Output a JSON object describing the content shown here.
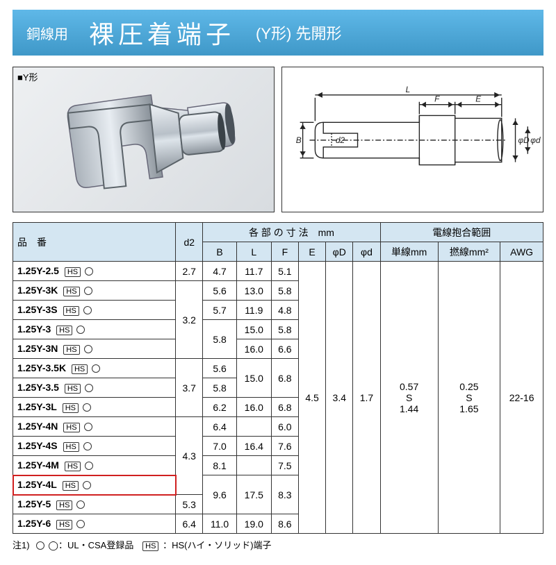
{
  "header": {
    "sub": "銅線用",
    "main": "裸圧着端子",
    "tail": "(Y形) 先開形"
  },
  "diagram_tag": "■Y形",
  "table": {
    "header_top": {
      "part": "品　番",
      "dims": "各 部 の 寸 法　mm",
      "wire": "電線抱合範囲"
    },
    "header_dims": [
      "d2",
      "B",
      "L",
      "F",
      "E",
      "φD",
      "φd"
    ],
    "header_wire": [
      "単線mm",
      "撚線mm²",
      "AWG"
    ],
    "rows": [
      {
        "part": "1.25Y-2.5",
        "hs": "HS",
        "d2": "2.7",
        "B": "4.7",
        "L": "11.7",
        "F": "5.1"
      },
      {
        "part": "1.25Y-3K",
        "hs": "HS",
        "d2": "",
        "B": "5.6",
        "L": "13.0",
        "F": "5.8"
      },
      {
        "part": "1.25Y-3S",
        "hs": "HS",
        "d2": "",
        "B": "5.7",
        "L": "11.9",
        "F": "4.8"
      },
      {
        "part": "1.25Y-3",
        "hs": "HS",
        "d2": "",
        "B": "5.8",
        "L": "15.0",
        "F": "5.8"
      },
      {
        "part": "1.25Y-3N",
        "hs": "HS",
        "d2": "",
        "B": "",
        "L": "16.0",
        "F": "6.6"
      },
      {
        "part": "1.25Y-3.5K",
        "hs": "HS",
        "d2": "",
        "B": "5.6",
        "L": "15.0",
        "F": "6.8"
      },
      {
        "part": "1.25Y-3.5",
        "hs": "HS",
        "d2": "",
        "B": "5.8",
        "L": "",
        "F": ""
      },
      {
        "part": "1.25Y-3L",
        "hs": "HS",
        "d2": "",
        "B": "6.2",
        "L": "16.0",
        "F": "6.8"
      },
      {
        "part": "1.25Y-4N",
        "hs": "HS",
        "d2": "",
        "B": "6.4",
        "L": "",
        "F": "6.0"
      },
      {
        "part": "1.25Y-4S",
        "hs": "HS",
        "d2": "",
        "B": "7.0",
        "L": "16.4",
        "F": "7.6"
      },
      {
        "part": "1.25Y-4M",
        "hs": "HS",
        "d2": "",
        "B": "8.1",
        "L": "",
        "F": "7.5"
      },
      {
        "part": "1.25Y-4L",
        "hs": "HS",
        "d2": "",
        "B": "9.6",
        "L": "17.5",
        "F": "8.3",
        "hl": true
      },
      {
        "part": "1.25Y-5",
        "hs": "HS",
        "d2": "5.3",
        "B": "",
        "L": "",
        "F": ""
      },
      {
        "part": "1.25Y-6",
        "hs": "HS",
        "d2": "6.4",
        "B": "11.0",
        "L": "19.0",
        "F": "8.6"
      }
    ],
    "d2_merge": [
      {
        "start": 1,
        "span": 4,
        "val": "3.2"
      },
      {
        "start": 5,
        "span": 3,
        "val": "3.7"
      },
      {
        "start": 8,
        "span": 4,
        "val": "4.3"
      }
    ],
    "B_merge": [
      {
        "start": 3,
        "span": 2,
        "val": "5.8"
      },
      {
        "start": 11,
        "span": 2,
        "val": "9.6"
      }
    ],
    "L_merge": [
      {
        "start": 5,
        "span": 2,
        "val": "15.0"
      },
      {
        "start": 11,
        "span": 2,
        "val": "17.5"
      }
    ],
    "F_merge": [
      {
        "start": 5,
        "span": 2,
        "val": "6.8"
      },
      {
        "start": 11,
        "span": 2,
        "val": "8.3"
      }
    ],
    "shared": {
      "E": "4.5",
      "phiD": "3.4",
      "phid": "1.7",
      "wire1": "0.57\nS\n1.44",
      "wire2": "0.25\nS\n1.65",
      "awg": "22-16"
    }
  },
  "footnote": {
    "prefix": "注1)",
    "ul": "◯：UL・CSA登録品",
    "hs": "：HS(ハイ・ソリッド)端子"
  }
}
